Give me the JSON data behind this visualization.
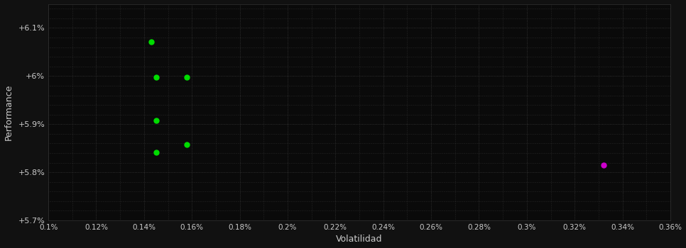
{
  "background_color": "#111111",
  "plot_bg_color": "#0a0a0a",
  "grid_color": "#3a3a3a",
  "text_color": "#cccccc",
  "xlabel": "Volatilidad",
  "ylabel": "Performance",
  "xlim": [
    0.001,
    0.0036
  ],
  "ylim": [
    0.057,
    0.0615
  ],
  "xticks": [
    0.001,
    0.0012,
    0.0014,
    0.0016,
    0.0018,
    0.002,
    0.0022,
    0.0024,
    0.0026,
    0.0028,
    0.003,
    0.0032,
    0.0034,
    0.0036
  ],
  "yticks": [
    0.057,
    0.058,
    0.059,
    0.06,
    0.061
  ],
  "ytick_labels": [
    "+5.7%",
    "+5.8%",
    "+5.9%",
    "+6%",
    "+6.1%"
  ],
  "xtick_labels": [
    "0.1%",
    "0.12%",
    "0.14%",
    "0.16%",
    "0.18%",
    "0.2%",
    "0.22%",
    "0.24%",
    "0.26%",
    "0.28%",
    "0.3%",
    "0.32%",
    "0.34%",
    "0.36%"
  ],
  "minor_yticks": [
    0.0572,
    0.0574,
    0.0576,
    0.0578,
    0.0582,
    0.0584,
    0.0586,
    0.0588,
    0.0592,
    0.0594,
    0.0596,
    0.0598,
    0.0602,
    0.0604,
    0.0606,
    0.0608,
    0.0612,
    0.0614
  ],
  "green_points": [
    [
      0.00143,
      0.06072
    ],
    [
      0.00145,
      0.05998
    ],
    [
      0.00145,
      0.05908
    ],
    [
      0.00145,
      0.05842
    ],
    [
      0.00158,
      0.05998
    ],
    [
      0.00158,
      0.05858
    ]
  ],
  "magenta_points": [
    [
      0.00332,
      0.05815
    ]
  ],
  "green_color": "#00dd00",
  "magenta_color": "#cc00cc",
  "marker_size": 5
}
